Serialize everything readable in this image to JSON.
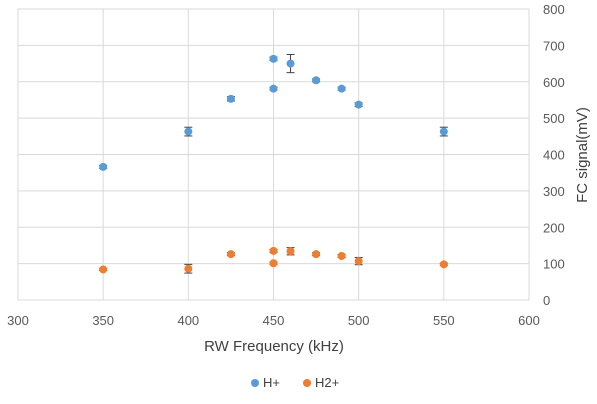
{
  "chart_data": {
    "type": "scatter",
    "title": "",
    "xlabel": "RW Frequency (kHz)",
    "ylabel": "FC signal(mV)",
    "xlim": [
      300,
      600
    ],
    "ylim": [
      0,
      800
    ],
    "x_ticks": [
      "300",
      "350",
      "400",
      "450",
      "500",
      "550",
      "600"
    ],
    "y_ticks": [
      "0",
      "100",
      "200",
      "300",
      "400",
      "500",
      "600",
      "700",
      "800"
    ],
    "y_axis_side": "right",
    "grid": true,
    "legend_position": "bottom",
    "series": [
      {
        "name": "H+",
        "color": "#5B9BD5",
        "points": [
          {
            "x": 350,
            "y": 366,
            "err": 4
          },
          {
            "x": 400,
            "y": 463,
            "err": 12
          },
          {
            "x": 425,
            "y": 553,
            "err": 6
          },
          {
            "x": 450,
            "y": 663,
            "err": 5
          },
          {
            "x": 450,
            "y": 581,
            "err": 4
          },
          {
            "x": 460,
            "y": 650,
            "err": 25
          },
          {
            "x": 475,
            "y": 604,
            "err": 4
          },
          {
            "x": 490,
            "y": 581,
            "err": 4
          },
          {
            "x": 500,
            "y": 537,
            "err": 5
          },
          {
            "x": 550,
            "y": 463,
            "err": 12
          }
        ]
      },
      {
        "name": "H2+",
        "color": "#ED7D31",
        "points": [
          {
            "x": 350,
            "y": 84,
            "err": 3
          },
          {
            "x": 400,
            "y": 86,
            "err": 12
          },
          {
            "x": 425,
            "y": 126,
            "err": 4
          },
          {
            "x": 450,
            "y": 135,
            "err": 4
          },
          {
            "x": 450,
            "y": 101,
            "err": 3
          },
          {
            "x": 460,
            "y": 134,
            "err": 10
          },
          {
            "x": 475,
            "y": 126,
            "err": 4
          },
          {
            "x": 490,
            "y": 121,
            "err": 4
          },
          {
            "x": 500,
            "y": 107,
            "err": 10
          },
          {
            "x": 550,
            "y": 98,
            "err": 3
          }
        ]
      }
    ]
  }
}
